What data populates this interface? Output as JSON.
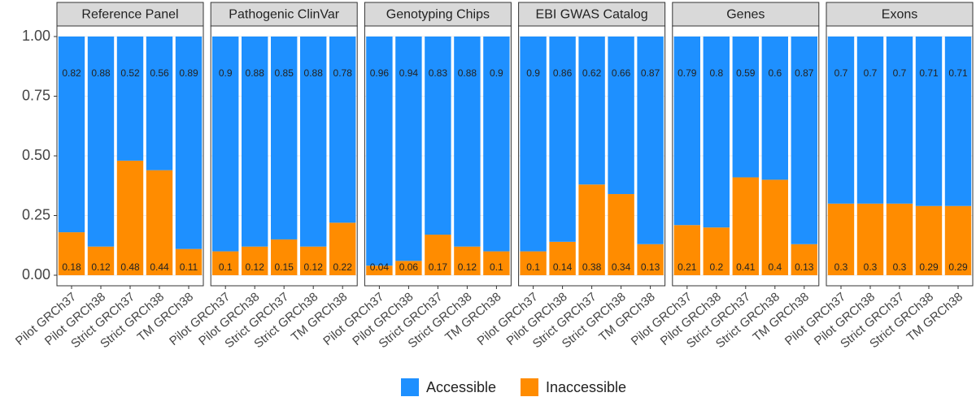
{
  "chart_data": {
    "type": "bar",
    "stacked": true,
    "legend": "bottom",
    "categories": [
      "Pilot GRCh37",
      "Pilot GRCh38",
      "Strict GRCh37",
      "Strict GRCh38",
      "TM GRCh38"
    ],
    "ylim": [
      0,
      1
    ],
    "yticks": [
      {
        "value": 0,
        "label": "0.00"
      },
      {
        "value": 0.25,
        "label": "0.25"
      },
      {
        "value": 0.5,
        "label": "0.50"
      },
      {
        "value": 0.75,
        "label": "0.75"
      },
      {
        "value": 1,
        "label": "1.00"
      }
    ],
    "series": [
      {
        "name": "Accessible",
        "color": "#1e90ff"
      },
      {
        "name": "Inaccessible",
        "color": "#ff8c00"
      }
    ],
    "facets": [
      {
        "title": "Reference Panel",
        "series": [
          {
            "values": [
              0.82,
              0.88,
              0.52,
              0.56,
              0.89
            ]
          },
          {
            "values": [
              0.18,
              0.12,
              0.48,
              0.44,
              0.11
            ]
          }
        ]
      },
      {
        "title": "Pathogenic ClinVar",
        "series": [
          {
            "values": [
              0.9,
              0.88,
              0.85,
              0.88,
              0.78
            ]
          },
          {
            "values": [
              0.1,
              0.12,
              0.15,
              0.12,
              0.22
            ]
          }
        ]
      },
      {
        "title": "Genotyping Chips",
        "series": [
          {
            "values": [
              0.96,
              0.94,
              0.83,
              0.88,
              0.9
            ]
          },
          {
            "values": [
              0.04,
              0.06,
              0.17,
              0.12,
              0.1
            ]
          }
        ]
      },
      {
        "title": "EBI GWAS Catalog",
        "series": [
          {
            "values": [
              0.9,
              0.86,
              0.62,
              0.66,
              0.87
            ]
          },
          {
            "values": [
              0.1,
              0.14,
              0.38,
              0.34,
              0.13
            ]
          }
        ]
      },
      {
        "title": "Genes",
        "series": [
          {
            "values": [
              0.79,
              0.8,
              0.59,
              0.6,
              0.87
            ]
          },
          {
            "values": [
              0.21,
              0.2,
              0.41,
              0.4,
              0.13
            ]
          }
        ]
      },
      {
        "title": "Exons",
        "series": [
          {
            "values": [
              0.7,
              0.7,
              0.7,
              0.71,
              0.71
            ]
          },
          {
            "values": [
              0.3,
              0.3,
              0.3,
              0.29,
              0.29
            ]
          }
        ]
      }
    ]
  }
}
